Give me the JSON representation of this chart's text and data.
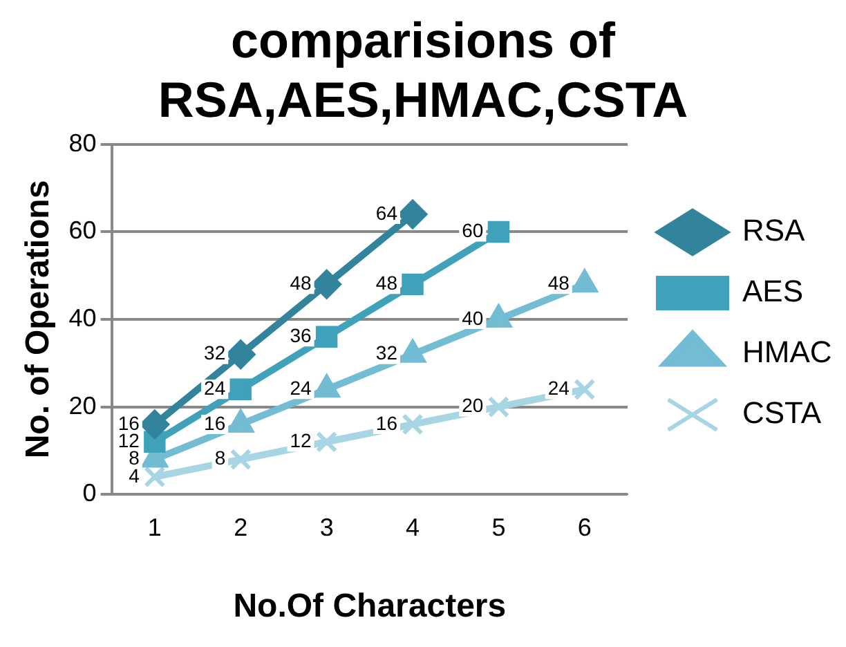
{
  "chart_data": {
    "type": "line",
    "title": [
      "comparisions of",
      "RSA,AES,HMAC,CSTA"
    ],
    "xlabel": "No.Of Characters",
    "ylabel": "No. of Operations",
    "categories": [
      "1",
      "2",
      "3",
      "4",
      "5",
      "6"
    ],
    "series": [
      {
        "name": "RSA",
        "color": "#31849b",
        "marker": "diamond",
        "values": [
          16,
          32,
          48,
          64,
          null,
          null
        ]
      },
      {
        "name": "AES",
        "color": "#3fa2ba",
        "marker": "square",
        "values": [
          12,
          24,
          36,
          48,
          60,
          null
        ]
      },
      {
        "name": "HMAC",
        "color": "#72bcd4",
        "marker": "triangle",
        "values": [
          8,
          16,
          24,
          32,
          40,
          48
        ]
      },
      {
        "name": "CSTA",
        "color": "#a8d5e3",
        "marker": "cross",
        "values": [
          4,
          8,
          12,
          16,
          20,
          24
        ]
      }
    ],
    "ylim": [
      0,
      80
    ],
    "yticks": [
      0,
      20,
      40,
      60,
      80
    ],
    "grid": "y",
    "legend": "right",
    "data_labels": true
  }
}
